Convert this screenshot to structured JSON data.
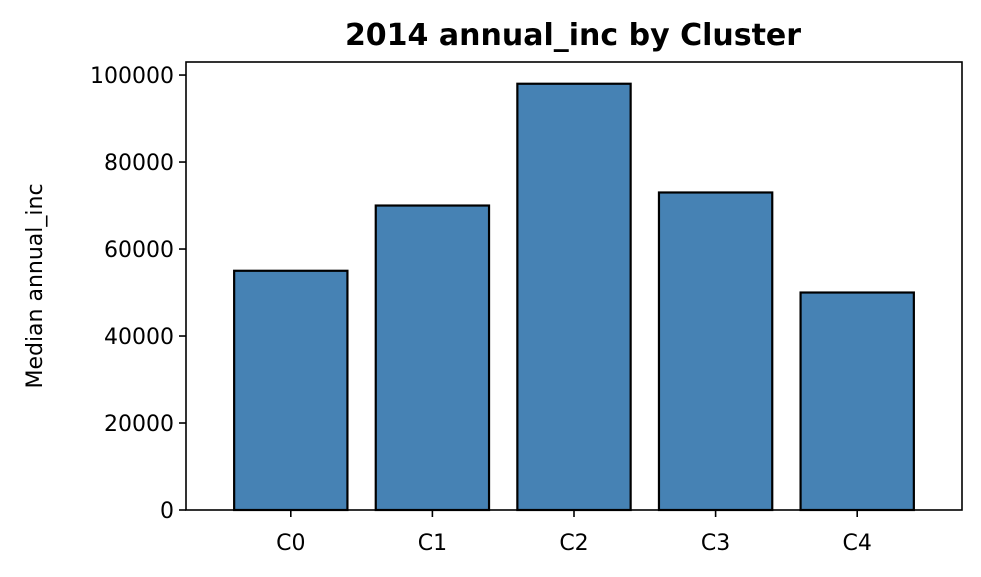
{
  "chart_data": {
    "type": "bar",
    "title": "2014 annual_inc by Cluster",
    "xlabel": "",
    "ylabel": "Median annual_inc",
    "categories": [
      "C0",
      "C1",
      "C2",
      "C3",
      "C4"
    ],
    "values": [
      55000,
      70000,
      98000,
      73000,
      50000
    ],
    "ylim": [
      0,
      103000
    ],
    "yticks": [
      0,
      20000,
      40000,
      60000,
      80000,
      100000
    ],
    "ytick_labels": [
      "0",
      "20000",
      "40000",
      "60000",
      "80000",
      "100000"
    ],
    "grid": false,
    "bar_color": "#4682b4",
    "edge_color": "#000000"
  }
}
